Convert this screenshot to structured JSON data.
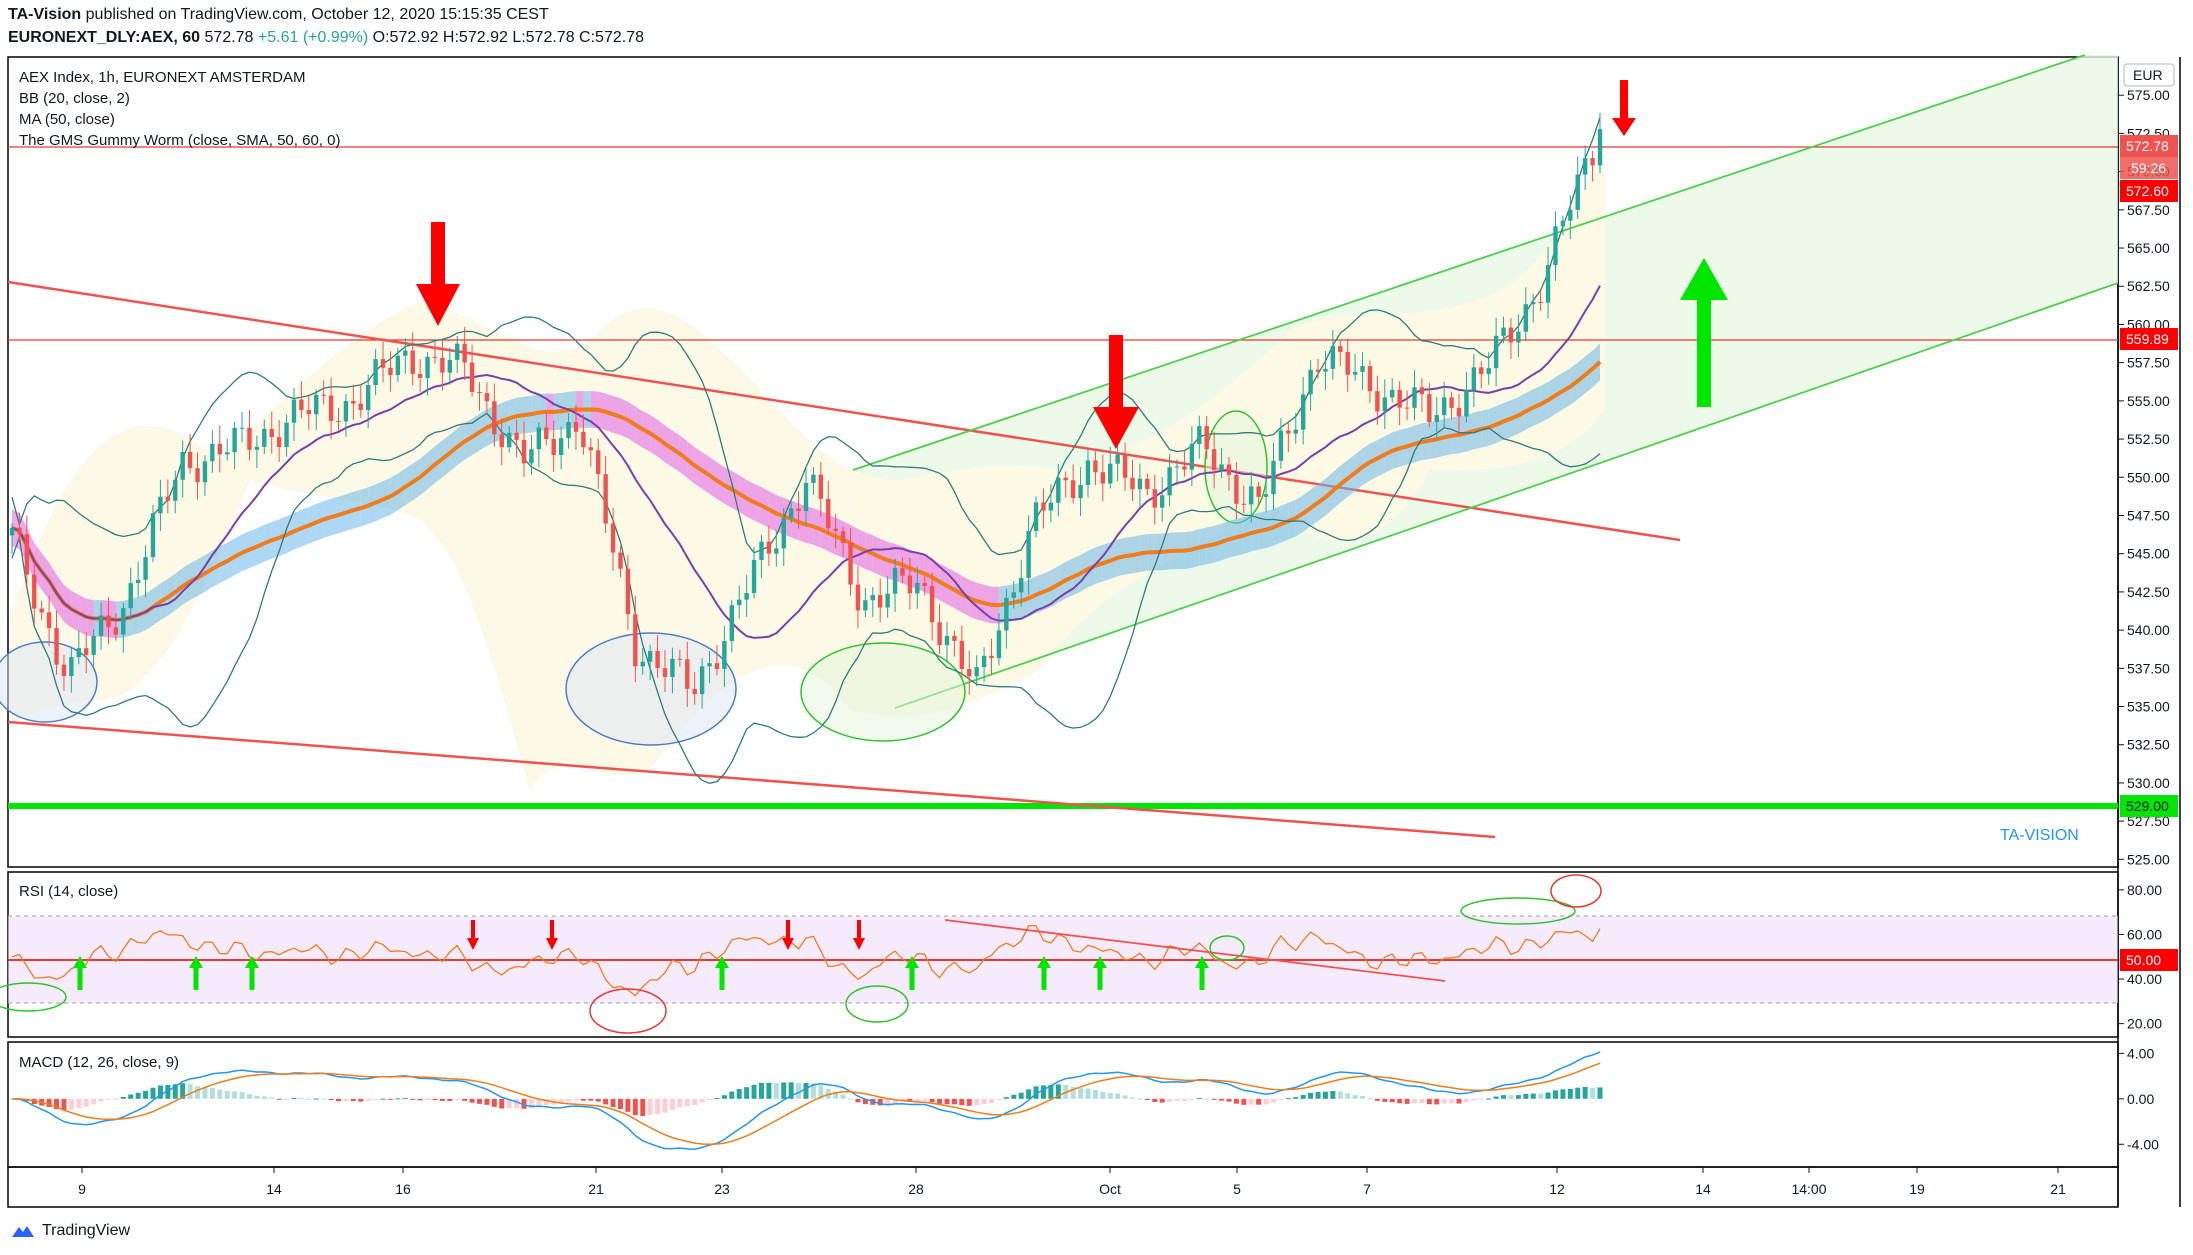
{
  "header": {
    "author": "TA-Vision",
    "published_text": "published on TradingView.com, October 12, 2020 15:15:35 CEST",
    "symbol": "EURONEXT_DLY:AEX, 60",
    "last": "572.78",
    "change": "+5.61 (+0.99%)",
    "ohlc": "O:572.92 H:572.92 L:572.78 C:572.78"
  },
  "legend": {
    "title": "AEX Index, 1h, EURONEXT AMSTERDAM",
    "bb": "BB (20, close, 2)",
    "ma": "MA (50, close)",
    "gms": "The GMS Gummy Worm (close, SMA, 50, 60, 0)"
  },
  "rsi_label": "RSI (14, close)",
  "macd_label": "MACD (12, 26, close, 9)",
  "currency": "EUR",
  "watermark": "TA-VISION",
  "footer": "TradingView",
  "price_badges": {
    "last": "572.78",
    "countdown": "59:26",
    "prev": "572.60",
    "resistance": "559.89",
    "support": "529.00",
    "rsi_mid": "50.00"
  },
  "colors": {
    "up": "#26a69a",
    "down": "#ef5350",
    "red_line": "#e53935",
    "green_line": "#00e600",
    "channel": "#4cd04c",
    "bb": "#2e7d77",
    "ma": "#7b3fa8",
    "worm": "#f07c1b"
  },
  "chart_data": [
    {
      "type": "candlestick",
      "title": "AEX Index, 1h, EURONEXT AMSTERDAM",
      "x_ticks": [
        "9",
        "14",
        "16",
        "21",
        "23",
        "28",
        "Oct",
        "5",
        "7",
        "12",
        "14",
        "14:00",
        "19",
        "21"
      ],
      "y_ticks": [
        "525.00",
        "527.50",
        "530.00",
        "532.50",
        "535.00",
        "537.50",
        "540.00",
        "542.50",
        "545.00",
        "547.50",
        "550.00",
        "552.50",
        "555.00",
        "557.50",
        "560.00",
        "562.50",
        "565.00",
        "567.50",
        "570.00",
        "572.50",
        "575.00"
      ],
      "ylim": [
        524.5,
        577.5
      ],
      "key_close_points": [
        {
          "x": "Sep 8",
          "y": 546
        },
        {
          "x": "Sep 8 late",
          "y": 537
        },
        {
          "x": "Sep 9",
          "y": 542
        },
        {
          "x": "Sep 10",
          "y": 551
        },
        {
          "x": "Sep 11",
          "y": 552
        },
        {
          "x": "Sep 14",
          "y": 554
        },
        {
          "x": "Sep 15",
          "y": 555
        },
        {
          "x": "Sep 16",
          "y": 558
        },
        {
          "x": "Sep 17",
          "y": 557
        },
        {
          "x": "Sep 18",
          "y": 551
        },
        {
          "x": "Sep 19",
          "y": 554
        },
        {
          "x": "Sep 21",
          "y": 539
        },
        {
          "x": "Sep 22",
          "y": 536
        },
        {
          "x": "Sep 23",
          "y": 543
        },
        {
          "x": "Sep 24",
          "y": 550
        },
        {
          "x": "Sep 25",
          "y": 542
        },
        {
          "x": "Sep 26",
          "y": 543
        },
        {
          "x": "Sep 27",
          "y": 536
        },
        {
          "x": "Sep 28",
          "y": 547
        },
        {
          "x": "Sep 29",
          "y": 551
        },
        {
          "x": "Sep 30",
          "y": 549
        },
        {
          "x": "Oct 1",
          "y": 552
        },
        {
          "x": "Oct 2",
          "y": 548
        },
        {
          "x": "Oct 5",
          "y": 558
        },
        {
          "x": "Oct 6",
          "y": 556
        },
        {
          "x": "Oct 7",
          "y": 554
        },
        {
          "x": "Oct 8",
          "y": 557
        },
        {
          "x": "Oct 9",
          "y": 563
        },
        {
          "x": "Oct 12",
          "y": 572.78
        }
      ],
      "horizontal_levels": [
        {
          "label": "572.78",
          "y": 572.78,
          "color": "red"
        },
        {
          "label": "559.89",
          "y": 559.89,
          "color": "red"
        },
        {
          "label": "529.00",
          "y": 529.0,
          "color": "green"
        }
      ],
      "annotations": [
        "red down arrows at resistance touches",
        "green up arrow inside rising channel",
        "ellipses marking bottoms and breakout"
      ]
    },
    {
      "type": "line",
      "title": "RSI (14, close)",
      "y_ticks": [
        "20.00",
        "40.00",
        "60.00",
        "80.00"
      ],
      "ylim": [
        14,
        88
      ],
      "levels": [
        30,
        50,
        70
      ]
    },
    {
      "type": "line",
      "title": "MACD (12, 26, close, 9)",
      "y_ticks": [
        "-4.00",
        "0.00",
        "4.00"
      ],
      "ylim": [
        -6,
        5
      ]
    }
  ]
}
